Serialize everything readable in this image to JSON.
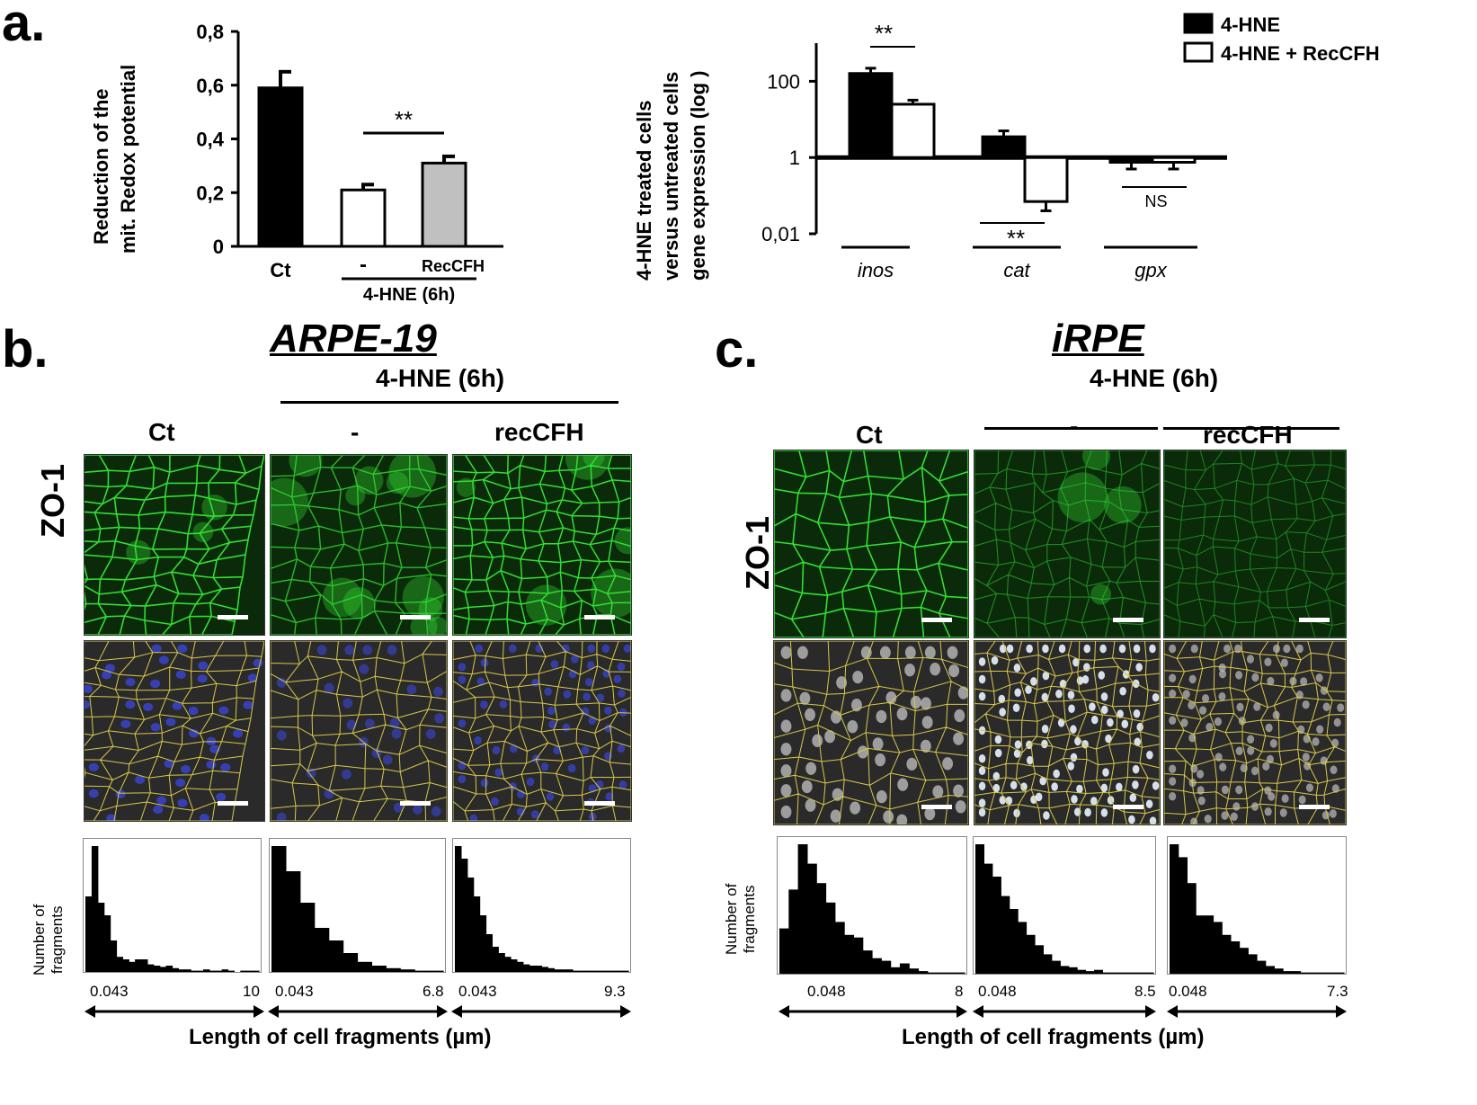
{
  "panels": {
    "a": "a.",
    "b": "b.",
    "c": "c."
  },
  "chart_data": [
    {
      "type": "bar",
      "ylabel_line1": "Reduction of the",
      "ylabel_line2": "mit. Redox potential",
      "ylim": [
        0,
        0.8
      ],
      "yticks": [
        "0,8",
        "0,6",
        "0,4",
        "0,2",
        "0"
      ],
      "categories": [
        "Ct",
        "-",
        "RecCFH"
      ],
      "group_label": "4-HNE (6h)",
      "values": [
        0.59,
        0.21,
        0.31
      ],
      "errors": [
        0.06,
        0.02,
        0.025
      ],
      "colors": [
        "#000000",
        "#ffffff",
        "#c0c0c0"
      ],
      "significance": "**"
    },
    {
      "type": "bar",
      "ylabel_line1": "4-HNE treated cells",
      "ylabel_line2": "versus untreated cells",
      "ylabel_line3": "gene expression  (log )",
      "yscale": "log",
      "ylim": [
        0.01,
        1000
      ],
      "yticks": [
        "100",
        "1",
        "0,01"
      ],
      "categories": [
        "inos",
        "cat",
        "gpx"
      ],
      "series": [
        {
          "name": "4-HNE",
          "values": [
            160,
            3.5,
            0.75
          ],
          "errors": [
            60,
            1.5,
            0.25
          ],
          "color": "#000000"
        },
        {
          "name": "4-HNE + RecCFH",
          "values": [
            25,
            0.07,
            0.75
          ],
          "errors": [
            7,
            0.03,
            0.25
          ],
          "color": "#ffffff"
        }
      ],
      "significance": [
        "**",
        "**",
        "NS"
      ]
    },
    {
      "type": "histogram",
      "ylabel_line1": "Number of",
      "ylabel_line2": "fragments",
      "xlabel": "Length of cell fragments (µm)",
      "panels": [
        {
          "condition": "Ct",
          "xmin": "0.043",
          "xmax": "10",
          "values": [
            60,
            100,
            55,
            45,
            25,
            12,
            10,
            8,
            10,
            10,
            6,
            5,
            4,
            5,
            3,
            2,
            2,
            1,
            1,
            2,
            1,
            1,
            2,
            1,
            0,
            1,
            1,
            1
          ]
        },
        {
          "condition": "-",
          "xmin": "0.043",
          "xmax": "6.8",
          "values": [
            100,
            80,
            55,
            35,
            25,
            15,
            8,
            5,
            3,
            2,
            1,
            1
          ]
        },
        {
          "condition": "recCFH",
          "xmin": "0.043",
          "xmax": "9.3",
          "values": [
            100,
            90,
            75,
            60,
            45,
            30,
            20,
            15,
            12,
            10,
            8,
            6,
            5,
            5,
            4,
            3,
            2,
            2,
            2,
            1,
            1,
            1,
            1,
            1,
            1,
            1,
            1,
            1
          ]
        }
      ]
    },
    {
      "type": "histogram",
      "ylabel_line1": "Number of",
      "ylabel_line2": "fragments",
      "xlabel": "Length of cell fragments (µm)",
      "panels": [
        {
          "condition": "Ct",
          "xmin": "0.048",
          "xmax": "8",
          "values": [
            35,
            65,
            100,
            85,
            70,
            55,
            40,
            30,
            28,
            18,
            12,
            10,
            5,
            8,
            4,
            2,
            1,
            1,
            1,
            1
          ]
        },
        {
          "condition": "-",
          "xmin": "0.048",
          "xmax": "8.5",
          "values": [
            100,
            85,
            75,
            60,
            50,
            40,
            30,
            22,
            15,
            10,
            6,
            5,
            3,
            2,
            3,
            1,
            1,
            1,
            1,
            1,
            1
          ]
        },
        {
          "condition": "recCFH",
          "xmin": "0.048",
          "xmax": "7.3",
          "values": [
            100,
            90,
            70,
            45,
            45,
            40,
            30,
            25,
            20,
            15,
            10,
            6,
            4,
            2,
            2,
            1,
            1,
            1,
            1,
            1
          ]
        }
      ]
    }
  ],
  "microscopy": {
    "b": {
      "title": "ARPE-19",
      "treatment_label": "4-HNE (6h)",
      "columns": [
        "Ct",
        "-",
        "recCFH"
      ],
      "row_label": "ZO-1"
    },
    "c": {
      "title": "iRPE",
      "treatment_label": "4-HNE (6h)",
      "columns": [
        "Ct",
        "-",
        "recCFH"
      ],
      "row_label": "ZO-1"
    }
  },
  "colors": {
    "zo1_green": "#33dd33",
    "outline_yellow": "#d8c84a",
    "nuclei_blue": "#3a46d6"
  }
}
